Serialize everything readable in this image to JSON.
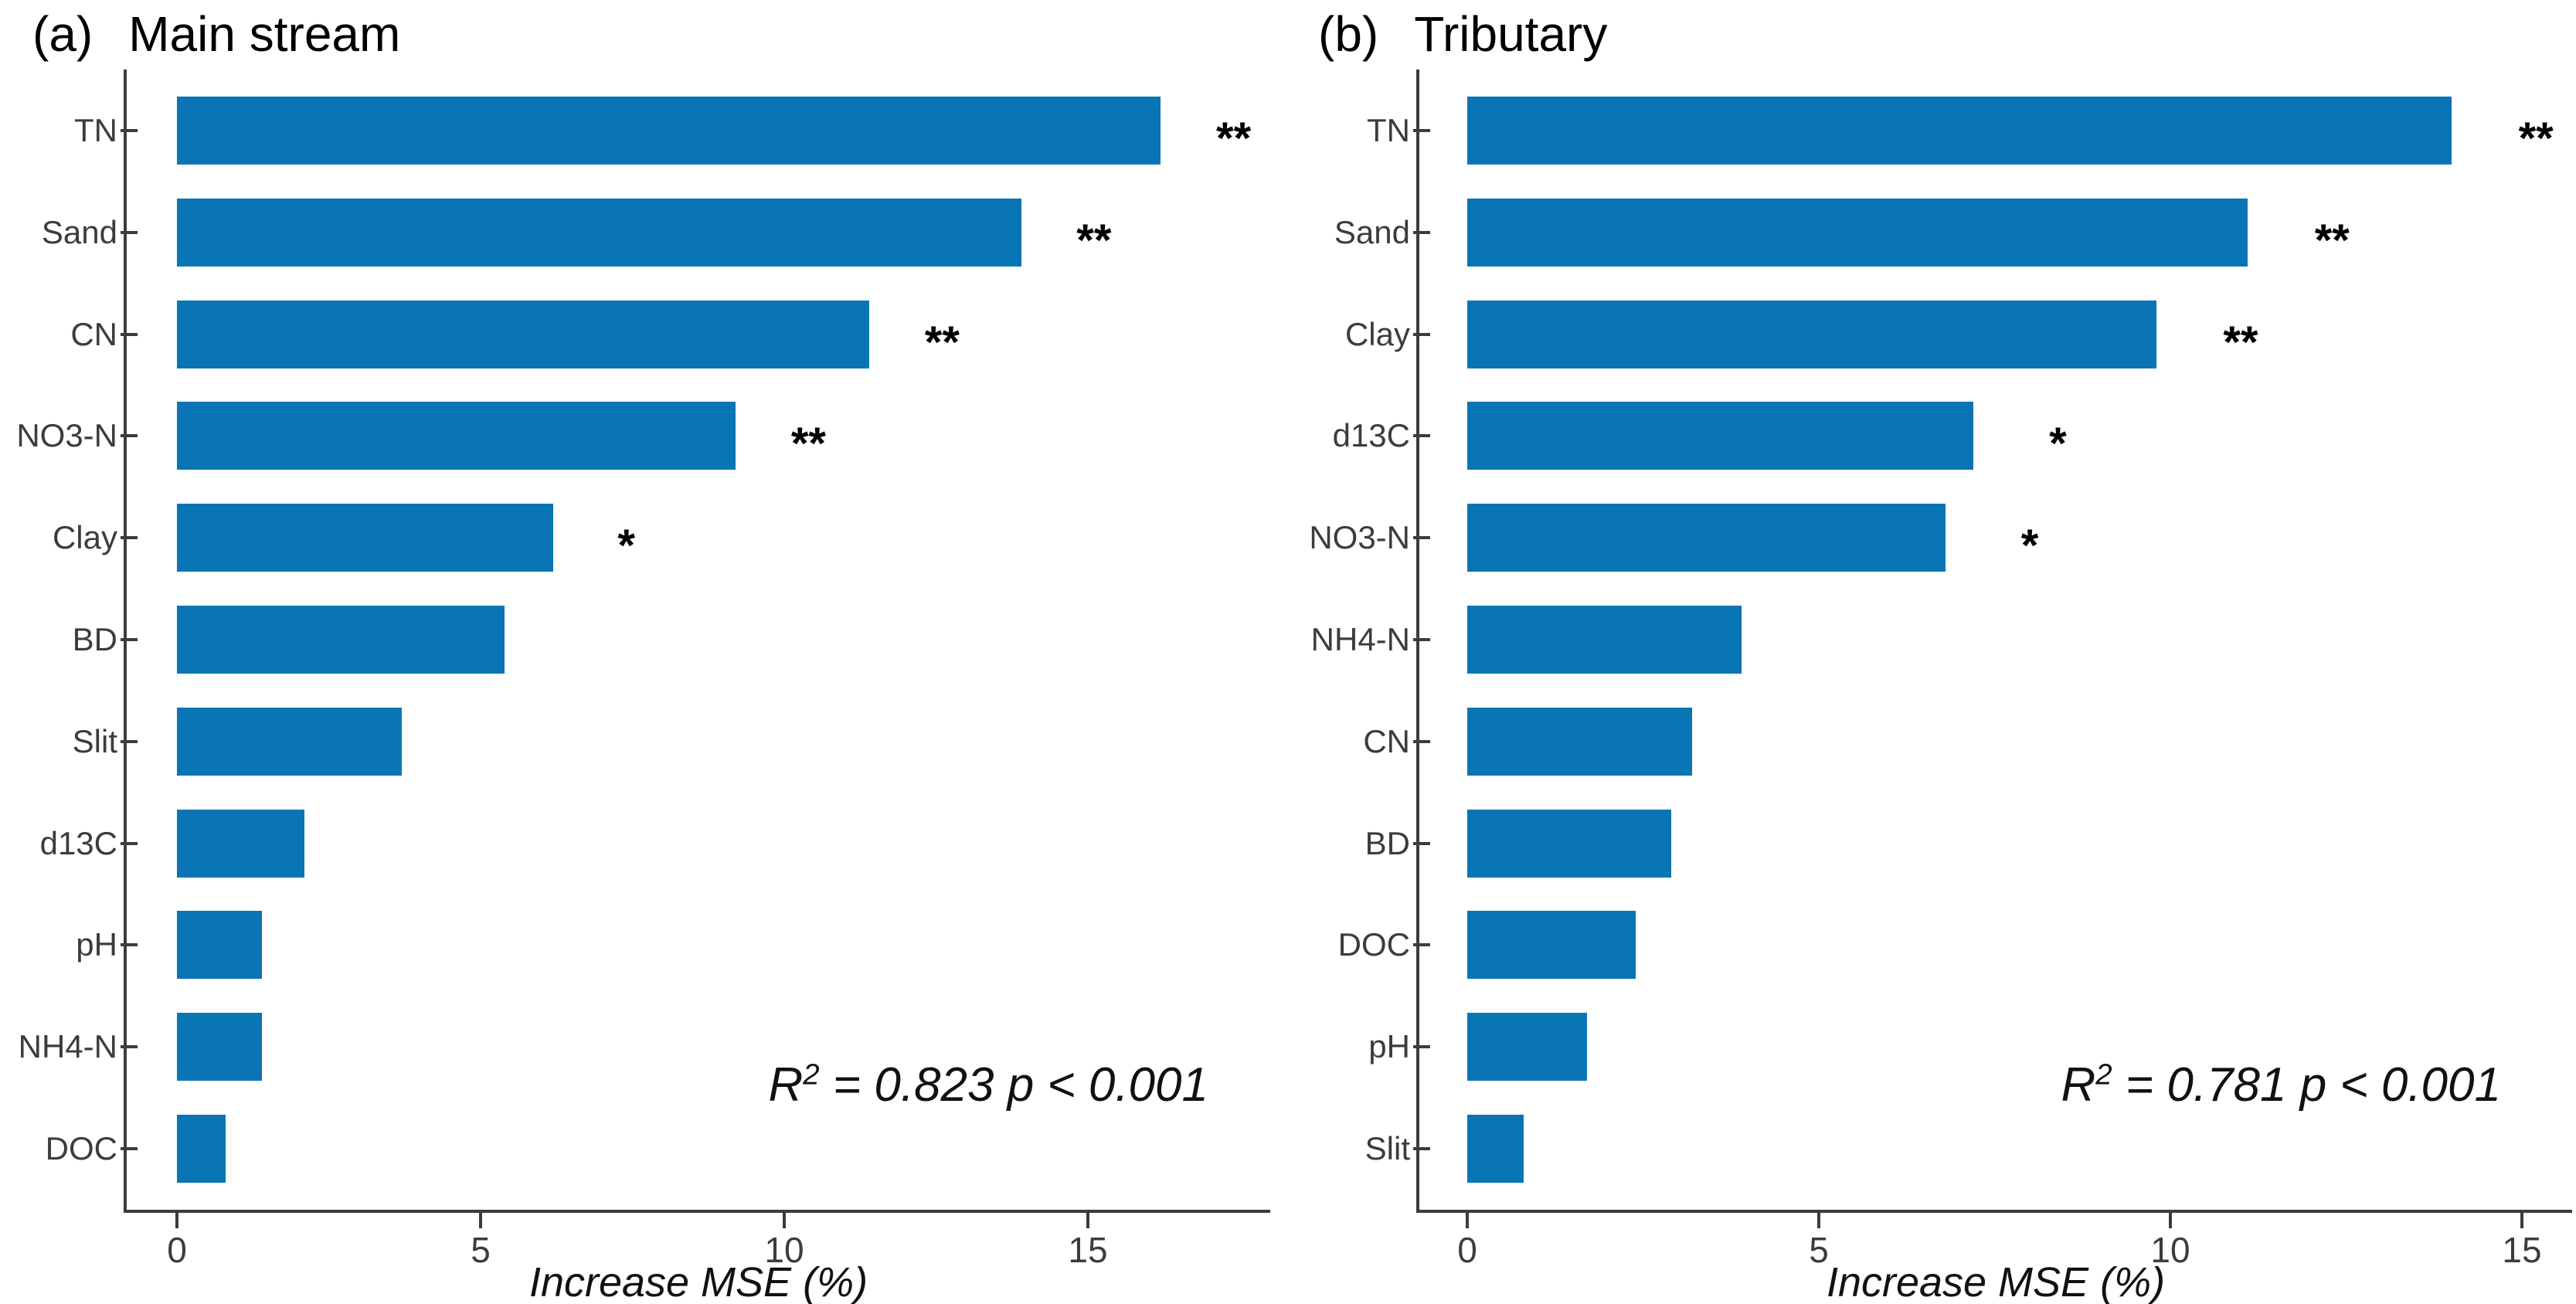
{
  "figure": {
    "bar_color": "#0a75b5",
    "axis_color": "#3c3c3c",
    "label_color": "#3c3c3c",
    "title_color": "#000000"
  },
  "chart_data": [
    {
      "type": "bar",
      "orientation": "horizontal",
      "panel_label": "(a)",
      "title": "Main stream",
      "categories": [
        "TN",
        "Sand",
        "CN",
        "NO3-N",
        "Clay",
        "BD",
        "Slit",
        "d13C",
        "pH",
        "NH4-N",
        "DOC"
      ],
      "values": [
        16.2,
        13.9,
        11.4,
        9.2,
        6.2,
        5.4,
        3.7,
        2.1,
        1.4,
        1.4,
        0.8
      ],
      "significance": [
        "**",
        "**",
        "**",
        "**",
        "*",
        "",
        "",
        "",
        "",
        "",
        ""
      ],
      "xlabel": "Increase MSE (%)",
      "xticks": [
        0,
        5,
        10,
        15
      ],
      "xlim": [
        -0.9,
        17.9
      ],
      "grid": false,
      "legend": false,
      "annotation": {
        "r": "R",
        "sup": "2",
        "rest": " = 0.823 p < 0.001"
      }
    },
    {
      "type": "bar",
      "orientation": "horizontal",
      "panel_label": "(b)",
      "title": "Tributary",
      "categories": [
        "TN",
        "Sand",
        "Clay",
        "d13C",
        "NO3-N",
        "NH4-N",
        "CN",
        "BD",
        "DOC",
        "pH",
        "Slit"
      ],
      "values": [
        14.0,
        11.1,
        9.8,
        7.2,
        6.8,
        3.9,
        3.2,
        2.9,
        2.4,
        1.7,
        0.8
      ],
      "significance": [
        "**",
        "**",
        "**",
        "*",
        "*",
        "",
        "",
        "",
        "",
        "",
        ""
      ],
      "xlabel": "Increase MSE (%)",
      "xticks": [
        0,
        5,
        10,
        15
      ],
      "xlim": [
        -0.7,
        15.7
      ],
      "grid": false,
      "legend": false,
      "annotation": {
        "r": "R",
        "sup": "2",
        "rest": " = 0.781 p < 0.001"
      }
    }
  ]
}
